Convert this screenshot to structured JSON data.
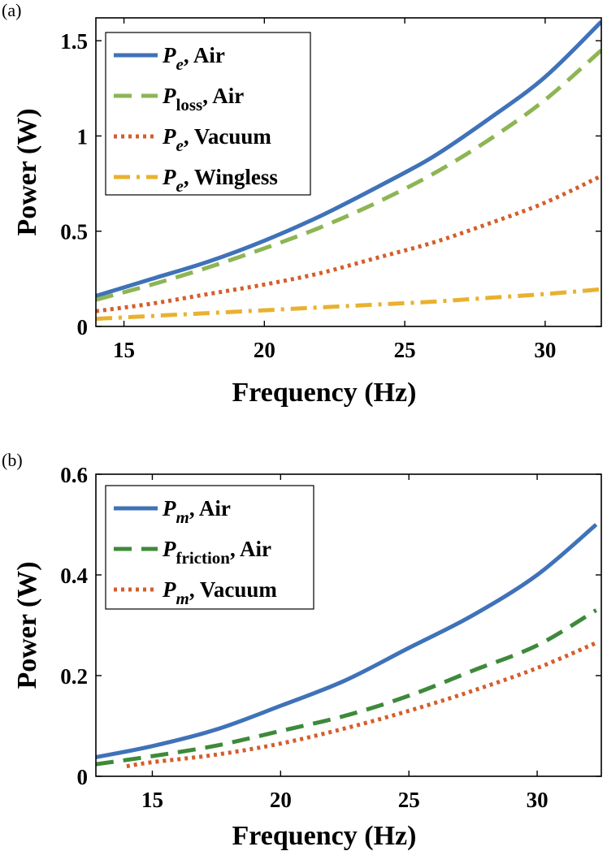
{
  "chart_data": [
    {
      "panel_label": "(a)",
      "type": "line",
      "xlabel": "Frequency (Hz)",
      "ylabel": "Power (W)",
      "xlim": [
        14,
        32
      ],
      "ylim": [
        0,
        1.62
      ],
      "xticks": [
        15,
        20,
        25,
        30
      ],
      "xtick_labels": [
        "15",
        "20",
        "25",
        "30"
      ],
      "yticks": [
        0,
        0.5,
        1,
        1.5
      ],
      "ytick_labels": [
        "0",
        "0.5",
        "1",
        "1.5"
      ],
      "legend_position": "top-left",
      "series": [
        {
          "name": "P_e, Air",
          "main": "P",
          "sub": "e",
          "sub_italic": true,
          "suffix": ", Air",
          "color": "#3F72B8",
          "dash": "solid",
          "x": [
            14,
            16,
            18,
            20,
            22,
            24,
            26,
            28,
            30,
            32
          ],
          "y": [
            0.16,
            0.25,
            0.34,
            0.45,
            0.58,
            0.73,
            0.89,
            1.09,
            1.31,
            1.6
          ]
        },
        {
          "name": "P_loss, Air",
          "main": "P",
          "sub": "loss",
          "sub_italic": false,
          "suffix": ", Air",
          "color": "#8DB554",
          "dash": "dashed",
          "x": [
            14,
            16,
            18,
            20,
            22,
            24,
            26,
            28,
            30,
            32
          ],
          "y": [
            0.14,
            0.22,
            0.31,
            0.41,
            0.52,
            0.65,
            0.8,
            0.98,
            1.19,
            1.45
          ]
        },
        {
          "name": "P_e, Vacuum",
          "main": "P",
          "sub": "e",
          "sub_italic": true,
          "suffix": ", Vacuum",
          "color": "#D45E2C",
          "dash": "dotted",
          "x": [
            14,
            16,
            18,
            20,
            22,
            24,
            26,
            28,
            30,
            32
          ],
          "y": [
            0.08,
            0.12,
            0.17,
            0.22,
            0.28,
            0.36,
            0.44,
            0.54,
            0.65,
            0.79
          ]
        },
        {
          "name": "P_e, Wingless",
          "main": "P",
          "sub": "e",
          "sub_italic": true,
          "suffix": ", Wingless",
          "color": "#E9B12F",
          "dash": "dashdot",
          "x": [
            14,
            16,
            18,
            20,
            22,
            24,
            26,
            28,
            30,
            32
          ],
          "y": [
            0.04,
            0.055,
            0.07,
            0.085,
            0.1,
            0.115,
            0.13,
            0.15,
            0.17,
            0.195
          ]
        }
      ]
    },
    {
      "panel_label": "(b)",
      "type": "line",
      "xlabel": "Frequency (Hz)",
      "ylabel": "Power (W)",
      "xlim": [
        12.8,
        32.5
      ],
      "ylim": [
        0,
        0.6
      ],
      "xticks": [
        15,
        20,
        25,
        30
      ],
      "xtick_labels": [
        "15",
        "20",
        "25",
        "30"
      ],
      "yticks": [
        0,
        0.2,
        0.4,
        0.6
      ],
      "ytick_labels": [
        "0",
        "0.2",
        "0.4",
        "0.6"
      ],
      "legend_position": "top-left",
      "series": [
        {
          "name": "P_m, Air",
          "main": "P",
          "sub": "m",
          "sub_italic": true,
          "suffix": ", Air",
          "color": "#3F72B8",
          "dash": "solid",
          "x": [
            12.8,
            15,
            17.5,
            20,
            22.5,
            25,
            27.5,
            30,
            32.3
          ],
          "y": [
            0.038,
            0.06,
            0.093,
            0.14,
            0.19,
            0.255,
            0.32,
            0.4,
            0.5
          ]
        },
        {
          "name": "P_friction, Air",
          "main": "P",
          "sub": "friction",
          "sub_italic": false,
          "suffix": ", Air",
          "color": "#3D8A3A",
          "dash": "dashed",
          "x": [
            12.8,
            15,
            17.5,
            20,
            22.5,
            25,
            27.5,
            30,
            32.3
          ],
          "y": [
            0.024,
            0.04,
            0.061,
            0.09,
            0.12,
            0.16,
            0.21,
            0.26,
            0.33
          ]
        },
        {
          "name": "P_m, Vacuum",
          "main": "P",
          "sub": "m",
          "sub_italic": true,
          "suffix": ", Vacuum",
          "color": "#D45E2C",
          "dash": "dotted",
          "x": [
            14,
            15,
            17.5,
            20,
            22.5,
            25,
            27.5,
            30,
            32.3
          ],
          "y": [
            0.02,
            0.028,
            0.043,
            0.065,
            0.095,
            0.13,
            0.17,
            0.215,
            0.265
          ]
        }
      ]
    }
  ]
}
